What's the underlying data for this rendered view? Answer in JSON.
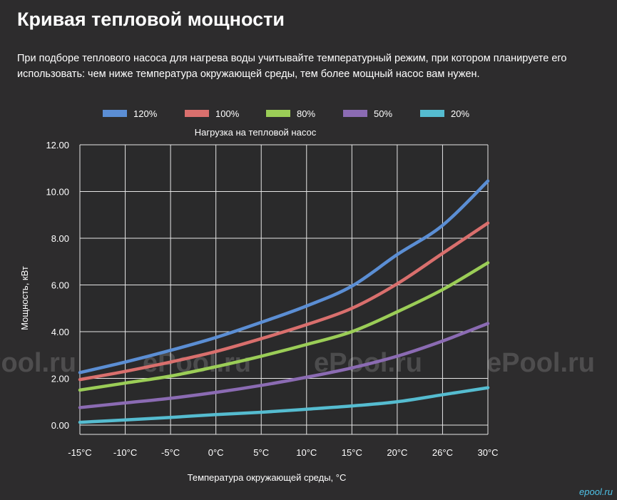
{
  "page": {
    "title": "Кривая тепловой мощности",
    "intro": "При подборе теплового насоса для нагрева воды учитывайте температурный режим, при котором планируете его использовать: чем ниже температура окружающей среды, тем более мощный насос вам нужен."
  },
  "watermark": {
    "text": "ePool.ru",
    "corner_text": "epool.ru"
  },
  "chart_data": {
    "type": "line",
    "title": "Нагрузка на тепловой насос",
    "xlabel": "Температура окружающей среды, °C",
    "ylabel": "Мощность, кВт",
    "categories": [
      "-15°C",
      "-10°C",
      "-5°C",
      "0°C",
      "5°C",
      "10°C",
      "15°C",
      "20°C",
      "26°C",
      "30°C"
    ],
    "ylim": [
      0,
      12
    ],
    "yticks": [
      "0.00",
      "2.00",
      "4.00",
      "6.00",
      "8.00",
      "10.00",
      "12.00"
    ],
    "grid": true,
    "legend_position": "top",
    "series": [
      {
        "name": "120%",
        "color": "#5b8ed4",
        "values": [
          2.25,
          2.7,
          3.2,
          3.75,
          4.4,
          5.1,
          5.95,
          7.3,
          8.55,
          10.45
        ]
      },
      {
        "name": "100%",
        "color": "#d96f6d",
        "values": [
          1.95,
          2.3,
          2.7,
          3.15,
          3.7,
          4.3,
          5.0,
          6.05,
          7.35,
          8.65
        ]
      },
      {
        "name": "80%",
        "color": "#9bcd57",
        "values": [
          1.5,
          1.8,
          2.1,
          2.5,
          2.95,
          3.45,
          4.0,
          4.85,
          5.8,
          6.95
        ]
      },
      {
        "name": "50%",
        "color": "#8b6bb3",
        "values": [
          0.75,
          0.95,
          1.15,
          1.4,
          1.7,
          2.05,
          2.45,
          2.95,
          3.6,
          4.35
        ]
      },
      {
        "name": "20%",
        "color": "#55bcd0",
        "values": [
          0.12,
          0.22,
          0.33,
          0.45,
          0.55,
          0.68,
          0.82,
          1.0,
          1.3,
          1.6
        ]
      }
    ]
  }
}
